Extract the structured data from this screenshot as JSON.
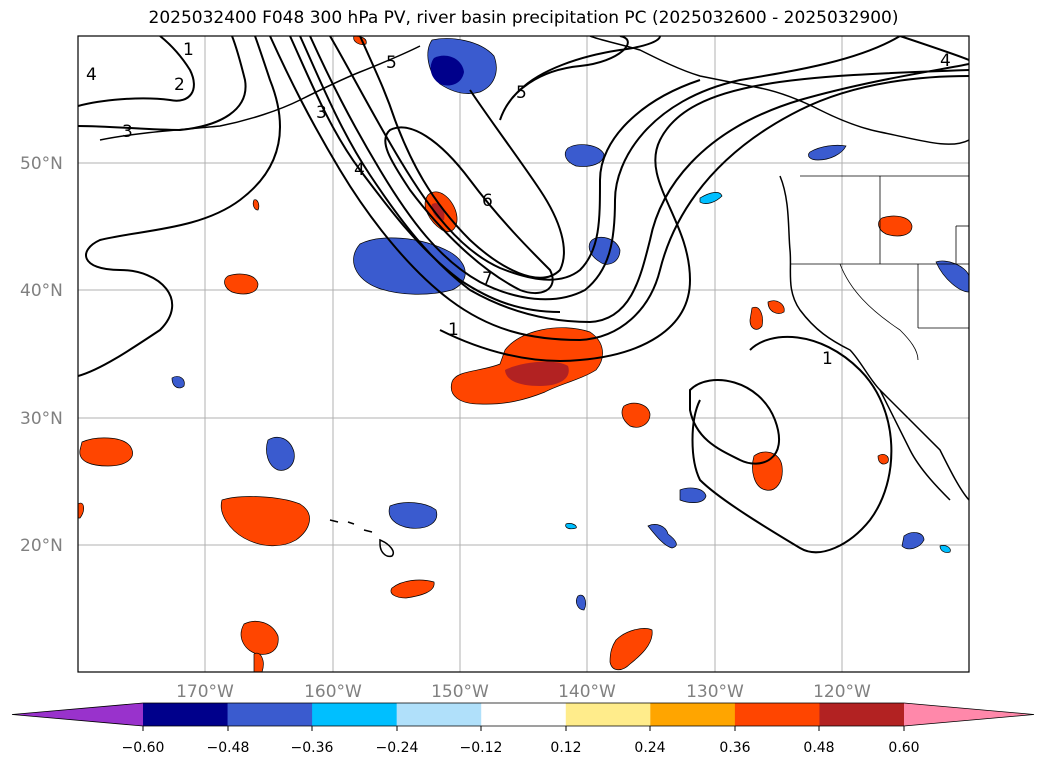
{
  "title": "2025032400 F048 300 hPa PV, river basin precipitation PC (2025032600 - 2025032900)",
  "map": {
    "lat_labels": [
      "50°N",
      "40°N",
      "30°N",
      "20°N"
    ],
    "lon_labels": [
      "170°W",
      "160°W",
      "150°W",
      "140°W",
      "130°W",
      "120°W"
    ],
    "contour_labels": [
      "1",
      "2",
      "3",
      "4",
      "5",
      "6",
      "7",
      "1",
      "1",
      "3",
      "4",
      "4",
      "5"
    ]
  },
  "colorbar": {
    "ticks": [
      "−0.60",
      "−0.48",
      "−0.36",
      "−0.24",
      "−0.12",
      "0.12",
      "0.24",
      "0.36",
      "0.48",
      "0.60"
    ],
    "colors": [
      "#9932cc",
      "#00008b",
      "#3a5bcf",
      "#00bfff",
      "#b0e0fa",
      "#ffffff",
      "#ffec8b",
      "#ffa500",
      "#ff4500",
      "#b22222",
      "#ff88aa"
    ]
  }
}
